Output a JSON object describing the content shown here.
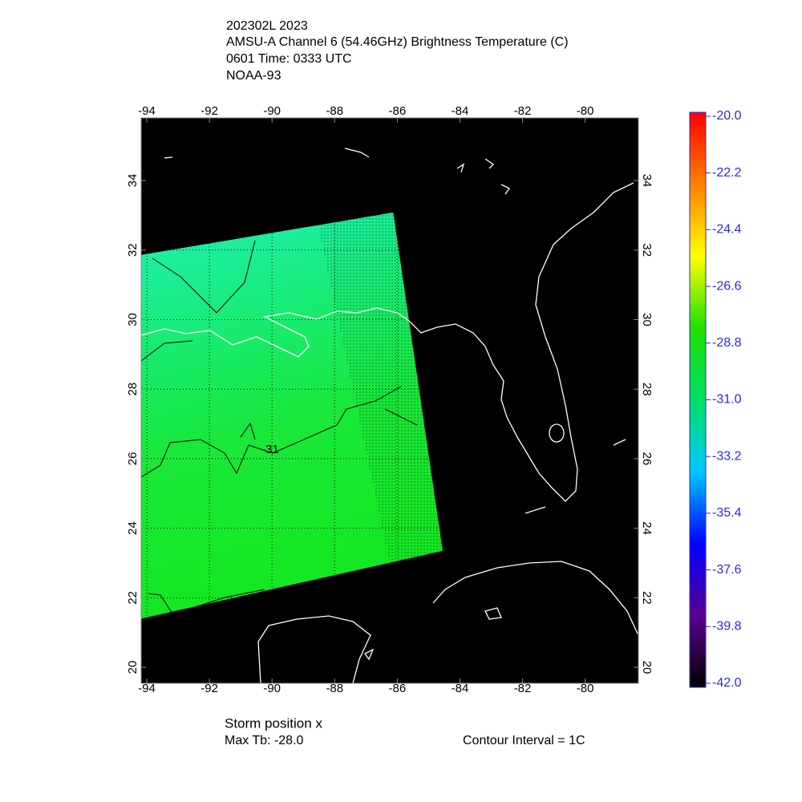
{
  "chart_data": {
    "type": "map",
    "title": [
      "202302L 2023",
      "AMSU-A Channel 6 (54.46GHz) Brightness Temperature (C)",
      "0601 Time: 0333 UTC",
      "NOAA-93"
    ],
    "xlim": [
      -94.18,
      -78.3
    ],
    "ylim": [
      19.54,
      35.8
    ],
    "xticks": [
      -94,
      -92,
      -90,
      -88,
      -86,
      -84,
      -82,
      -80
    ],
    "yticks": [
      20,
      22,
      24,
      26,
      28,
      30,
      32,
      34
    ],
    "grid": true,
    "swath": {
      "lon": [
        -94.18,
        -86.13,
        -84.55,
        -94.18
      ],
      "lat": [
        31.86,
        33.08,
        23.35,
        21.4
      ]
    },
    "colorbar": {
      "lim": [
        -42,
        -20
      ],
      "colors": [
        "#000000",
        "#5a0090",
        "#0000ff",
        "#00c8ff",
        "#00e060",
        "#20e000",
        "#ffff00",
        "#ff8000",
        "#ff0000"
      ],
      "ticks": [
        {
          "value": -20,
          "label": "-20.0"
        },
        -22.2,
        -24.4,
        -26.6,
        -28.8,
        {
          "value": -31,
          "label": "-31.0"
        },
        -33.2,
        -35.4,
        -37.6,
        -39.8,
        {
          "value": -42,
          "label": "-42.0"
        }
      ]
    },
    "contour_label": "-31",
    "storm_position": "Storm position x",
    "max_tb": "Max Tb: -28.0",
    "contour_interval": "Contour Interval = 1C"
  }
}
